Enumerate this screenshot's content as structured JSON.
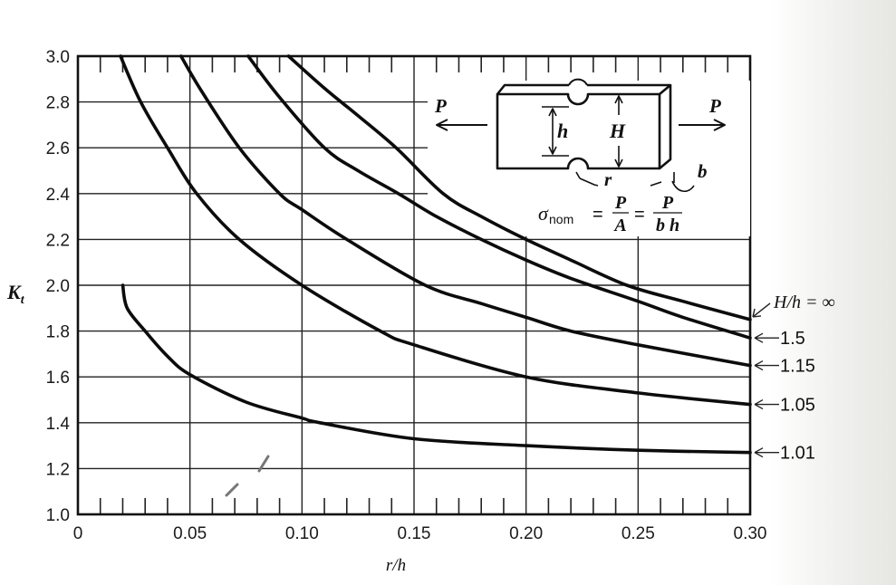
{
  "chart_data": {
    "type": "line",
    "title": "",
    "xlabel": "r/h",
    "ylabel": "K_t",
    "xlim": [
      0,
      0.3
    ],
    "ylim": [
      1.0,
      3.0
    ],
    "grid": true,
    "x_ticks": [
      "0",
      "0.05",
      "0.10",
      "0.15",
      "0.20",
      "0.25",
      "0.30"
    ],
    "y_ticks": [
      "1.0",
      "1.2",
      "1.4",
      "1.6",
      "1.8",
      "2.0",
      "2.2",
      "2.4",
      "2.6",
      "2.8",
      "3.0"
    ],
    "legend_title": "H/h",
    "legend_position": "right (inline arrow labels)",
    "series": [
      {
        "name": "H/h = ∞",
        "label": "H/h = ∞",
        "x": [
          0.094,
          0.11,
          0.125,
          0.142,
          0.163,
          0.18,
          0.2,
          0.22,
          0.245,
          0.27,
          0.3
        ],
        "values": [
          3.0,
          2.86,
          2.74,
          2.6,
          2.4,
          2.3,
          2.2,
          2.11,
          2.0,
          1.93,
          1.85
        ]
      },
      {
        "name": "H/h = 1.5",
        "label": "1.5",
        "x": [
          0.076,
          0.09,
          0.11,
          0.125,
          0.143,
          0.16,
          0.18,
          0.2,
          0.22,
          0.25,
          0.27,
          0.3
        ],
        "values": [
          3.0,
          2.82,
          2.6,
          2.5,
          2.4,
          2.3,
          2.2,
          2.11,
          2.03,
          1.93,
          1.86,
          1.77
        ]
      },
      {
        "name": "H/h = 1.15",
        "label": "1.15",
        "x": [
          0.046,
          0.055,
          0.072,
          0.09,
          0.1,
          0.12,
          0.155,
          0.18,
          0.2,
          0.22,
          0.25,
          0.3
        ],
        "values": [
          3.0,
          2.85,
          2.6,
          2.4,
          2.33,
          2.2,
          2.0,
          1.92,
          1.86,
          1.8,
          1.74,
          1.65
        ]
      },
      {
        "name": "H/h = 1.05",
        "label": "1.05",
        "x": [
          0.019,
          0.028,
          0.04,
          0.053,
          0.072,
          0.1,
          0.135,
          0.15,
          0.2,
          0.25,
          0.3
        ],
        "values": [
          3.0,
          2.8,
          2.6,
          2.4,
          2.2,
          2.0,
          1.8,
          1.74,
          1.6,
          1.53,
          1.48
        ]
      },
      {
        "name": "H/h = 1.01",
        "label": "1.01",
        "x": [
          0.02,
          0.022,
          0.03,
          0.04,
          0.05,
          0.075,
          0.1,
          0.108,
          0.15,
          0.2,
          0.25,
          0.3
        ],
        "values": [
          2.0,
          1.9,
          1.8,
          1.69,
          1.61,
          1.49,
          1.42,
          1.4,
          1.33,
          1.3,
          1.28,
          1.27
        ]
      }
    ],
    "annotations": [
      "Notched flat bar in tension diagram with loads P at both ends",
      "Dimensions: h (net width), H (gross width), r (notch radius), b (thickness)",
      "σ_nom = P/A = P/(bh)"
    ]
  },
  "axes": {
    "y_label": "K",
    "y_label_sub": "t",
    "x_label": "r/h",
    "x_ticks": [
      "0",
      "0.05",
      "0.10",
      "0.15",
      "0.20",
      "0.25",
      "0.30"
    ],
    "y_ticks": [
      "1.0",
      "1.2",
      "1.4",
      "1.6",
      "1.8",
      "2.0",
      "2.2",
      "2.4",
      "2.6",
      "2.8",
      "3.0"
    ]
  },
  "legend": {
    "labels": [
      "H/h = ∞",
      "1.5",
      "1.15",
      "1.05",
      "1.01"
    ]
  },
  "diagram": {
    "load_left": "P",
    "load_right": "P",
    "dim_h": "h",
    "dim_H": "H",
    "dim_r": "r",
    "dim_b": "b",
    "formula_sigma": "σ",
    "formula_sub": "nom",
    "formula_eq1": "=",
    "formula_num1": "P",
    "formula_den1": "A",
    "formula_eq2": "=",
    "formula_num2": "P",
    "formula_den2": "b h"
  }
}
